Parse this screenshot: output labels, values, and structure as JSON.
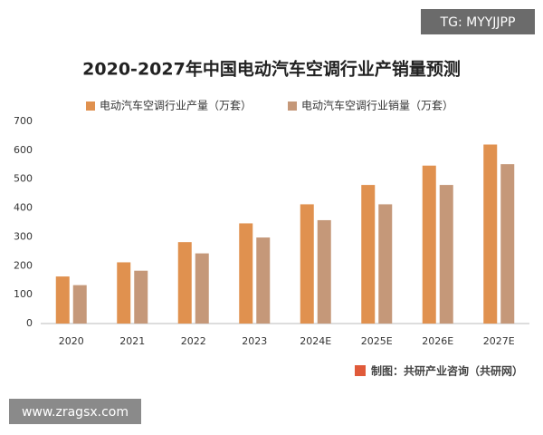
{
  "chart_data": {
    "type": "bar",
    "title": "2020-2027年中国电动汽车空调行业产销量预测",
    "categories": [
      "2020",
      "2021",
      "2022",
      "2023",
      "2024E",
      "2025E",
      "2026E",
      "2027E"
    ],
    "series": [
      {
        "name": "电动汽车空调行业产量（万套）",
        "color": "#e0914f",
        "values": [
          163,
          212,
          282,
          347,
          413,
          480,
          547,
          620
        ]
      },
      {
        "name": "电动汽车空调行业销量（万套）",
        "color": "#c59879",
        "values": [
          133,
          183,
          243,
          298,
          358,
          413,
          480,
          552
        ]
      }
    ],
    "ylim": [
      0,
      700
    ],
    "yticks": [
      0,
      100,
      200,
      300,
      400,
      500,
      600,
      700
    ],
    "grid": false,
    "source": "制图：共研产业咨询（共研网）"
  },
  "watermarks": {
    "top_right": "TG: MYYJJPP",
    "bottom_left": "www.zragsx.com"
  }
}
